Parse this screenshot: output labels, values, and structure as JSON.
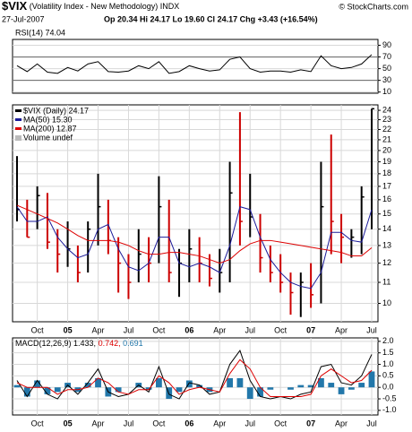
{
  "header": {
    "symbol": "$VIX",
    "name": "(Volatility Index - New Methodology)",
    "exchange": "INDX",
    "source": "© StockCharts.com",
    "date": "27-Jul-2007",
    "quote": "Op 20.34  Hi 24.17  Lo 19.60  Cl 24.17  Chg +3.43 (+16.54%)"
  },
  "chart_data": [
    {
      "type": "line",
      "title": "RSI(14) 74.04",
      "ylim": [
        8,
        100
      ],
      "yticks": [
        90,
        70,
        50,
        30,
        10
      ],
      "grid": true,
      "reference_lines": [
        70,
        30
      ],
      "series": [
        {
          "name": "RSI(14)",
          "color": "#000000",
          "values": [
            55,
            45,
            58,
            44,
            42,
            52,
            46,
            58,
            62,
            45,
            44,
            46,
            55,
            50,
            62,
            42,
            45,
            55,
            50,
            46,
            48,
            66,
            70,
            50,
            44,
            46,
            46,
            44,
            48,
            45,
            72,
            55,
            50,
            52,
            58,
            74.04
          ]
        }
      ]
    },
    {
      "type": "ohlc",
      "log": true,
      "grid": true,
      "ylim": [
        9.2,
        24.6
      ],
      "yticks": [
        10,
        11,
        12,
        13,
        14,
        15,
        16,
        17,
        18,
        19,
        20,
        21,
        22,
        23,
        24
      ],
      "categories": [
        null,
        null,
        "Oct",
        null,
        null,
        "05",
        null,
        null,
        "Apr",
        null,
        null,
        "Jul",
        null,
        null,
        "Oct",
        null,
        null,
        "06",
        null,
        null,
        "Apr",
        null,
        null,
        "Jul",
        null,
        null,
        "Oct",
        null,
        null,
        "07",
        null,
        null,
        "Apr",
        null,
        null,
        "Jul"
      ],
      "down_color": "#cc0000",
      "series": [
        {
          "name": "$VIX (Daily) 24.17",
          "color": "#000000",
          "high": [
            19.5,
            16,
            17,
            16.5,
            14,
            14.5,
            13,
            14.5,
            18,
            16,
            13.5,
            12.5,
            14,
            13.5,
            17.8,
            16,
            12.8,
            14,
            13.5,
            12.5,
            12.8,
            19,
            23.8,
            18,
            15,
            13,
            12.5,
            11.5,
            11.5,
            12,
            19,
            21.5,
            15,
            14,
            17,
            24.17
          ],
          "low": [
            14.5,
            13.5,
            14,
            12.8,
            11.5,
            11.8,
            11,
            11.5,
            13,
            12.5,
            10.5,
            10.2,
            11,
            11,
            12,
            11,
            10.3,
            11,
            11,
            10.8,
            10.5,
            11,
            13,
            13.5,
            11.5,
            11,
            10.5,
            9.5,
            9.4,
            9.8,
            10,
            12.5,
            12,
            12.3,
            12.5,
            14
          ],
          "values": [
            15.3,
            13.5,
            16.3,
            13.2,
            12.5,
            12.8,
            11.5,
            14,
            15.5,
            13.3,
            12,
            11,
            12.5,
            12,
            15.5,
            11.5,
            12,
            12.8,
            12,
            11.2,
            11.5,
            16.5,
            14.5,
            14.8,
            12.3,
            11.5,
            11,
            10.5,
            11,
            10.4,
            15.5,
            14.5,
            13.5,
            13.5,
            16.2,
            24.17
          ]
        },
        {
          "name": "MA(50) 15.30",
          "color": "#1a1a99",
          "values": [
            15.5,
            14.5,
            14.5,
            14.8,
            13.5,
            12.8,
            12.3,
            12.5,
            14,
            14.3,
            12.8,
            11.8,
            11.6,
            12,
            13.5,
            13.5,
            12,
            11.8,
            12,
            11.8,
            11.5,
            13,
            15.5,
            15.3,
            13.5,
            12.2,
            11.5,
            11,
            10.8,
            10.7,
            11.5,
            13.8,
            13.8,
            13.3,
            13.2,
            15.3
          ]
        },
        {
          "name": "MA(200) 12.87",
          "color": "#dd0000",
          "values": [
            15.6,
            15.3,
            15,
            14.7,
            14.4,
            14,
            13.6,
            13.3,
            13.3,
            13.3,
            13.2,
            13,
            12.7,
            12.5,
            12.5,
            12.6,
            12.6,
            12.5,
            12.4,
            12.2,
            12,
            12.2,
            12.7,
            13.1,
            13.3,
            13.3,
            13.2,
            13.1,
            13,
            12.9,
            12.8,
            12.7,
            12.6,
            12.4,
            12.4,
            12.87
          ]
        }
      ],
      "annotations": [
        "Volume undef"
      ]
    },
    {
      "type": "line",
      "grid": true,
      "ylim": [
        -1.2,
        2.15
      ],
      "yticks": [
        {
          "value": 2,
          "label": "2.0"
        },
        1.5,
        {
          "value": 1,
          "label": "1.0"
        },
        0.5,
        {
          "value": 0,
          "label": "0.0"
        },
        -0.5,
        {
          "value": -1,
          "label": "-1.0"
        }
      ],
      "categories": [
        null,
        null,
        "Oct",
        null,
        null,
        "05",
        null,
        null,
        "Apr",
        null,
        null,
        "Jul",
        null,
        null,
        "Oct",
        null,
        null,
        "06",
        null,
        null,
        "Apr",
        null,
        null,
        "Jul",
        null,
        null,
        "Oct",
        null,
        null,
        "07",
        null,
        null,
        "Apr",
        null,
        null,
        "Jul"
      ],
      "series": [
        {
          "name": "MACD(12,26,9) 1.433,",
          "color": "#000000",
          "values": [
            0.3,
            -0.4,
            0.3,
            -0.3,
            -0.5,
            0.1,
            -0.3,
            0.2,
            0.8,
            -0.2,
            -0.4,
            -0.3,
            0.1,
            -0.2,
            0.9,
            -0.3,
            -0.5,
            0.2,
            0.1,
            -0.3,
            -0.2,
            1.0,
            1.6,
            0.3,
            -0.4,
            -0.5,
            -0.4,
            -0.5,
            -0.3,
            -0.2,
            0.9,
            1.0,
            0.2,
            0.1,
            0.5,
            1.433
          ]
        },
        {
          "name": "0.742,",
          "color": "#dd0000",
          "values": [
            0.2,
            0,
            0,
            0,
            -0.3,
            -0.1,
            -0.1,
            0,
            0.4,
            0.2,
            -0.2,
            -0.3,
            -0.1,
            -0.1,
            0.5,
            0.2,
            -0.3,
            -0.1,
            0,
            -0.1,
            -0.2,
            0.6,
            1.2,
            0.8,
            0,
            -0.4,
            -0.4,
            -0.4,
            -0.4,
            -0.3,
            0.5,
            0.8,
            0.5,
            0.2,
            0.3,
            0.742
          ]
        },
        {
          "name": "0.691",
          "color": "#2277aa",
          "type": "bar",
          "values": [
            0.1,
            -0.4,
            0.3,
            -0.3,
            -0.2,
            0.2,
            -0.2,
            0.2,
            0.4,
            -0.4,
            -0.2,
            0,
            0.2,
            -0.1,
            0.4,
            -0.5,
            -0.2,
            0.3,
            0.1,
            -0.2,
            0,
            0.4,
            0.4,
            -0.5,
            -0.4,
            -0.1,
            0,
            -0.1,
            0.1,
            0.1,
            0.4,
            0.2,
            -0.3,
            -0.1,
            0.2,
            0.691
          ]
        }
      ]
    }
  ]
}
